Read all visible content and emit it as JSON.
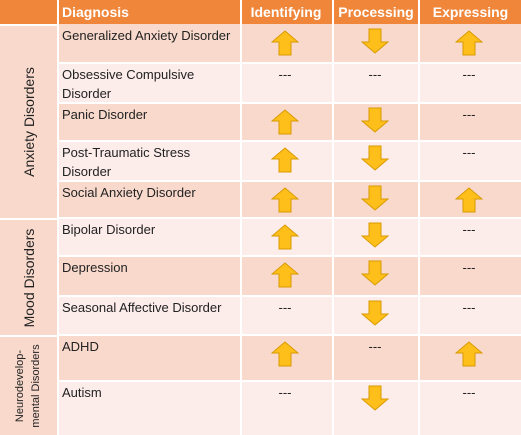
{
  "header": {
    "diagnosis": "Diagnosis",
    "identifying": "Identifying",
    "processing": "Processing",
    "expressing": "Expressing"
  },
  "groups": [
    {
      "label": "Anxiety Disorders"
    },
    {
      "label": "Mood Disorders"
    },
    {
      "label_lines": [
        "Neurodevelop-",
        "mental Disorders"
      ]
    }
  ],
  "rows": [
    {
      "name": "Generalized Anxiety Disorder",
      "identifying": "up",
      "processing": "down",
      "expressing": "up"
    },
    {
      "name": "Obsessive Compulsive Disorder",
      "identifying": "---",
      "processing": "---",
      "expressing": "---"
    },
    {
      "name": "Panic Disorder",
      "identifying": "up",
      "processing": "down",
      "expressing": "---"
    },
    {
      "name": "Post-Traumatic Stress Disorder",
      "identifying": "up",
      "processing": "down",
      "expressing": "---"
    },
    {
      "name": "Social Anxiety Disorder",
      "identifying": "up",
      "processing": "down",
      "expressing": "up"
    },
    {
      "name": "Bipolar Disorder",
      "identifying": "up",
      "processing": "down",
      "expressing": "---"
    },
    {
      "name": "Depression",
      "identifying": "up",
      "processing": "down",
      "expressing": "---"
    },
    {
      "name": "Seasonal Affective Disorder",
      "identifying": "---",
      "processing": "down",
      "expressing": "---"
    },
    {
      "name": "ADHD",
      "identifying": "up",
      "processing": "---",
      "expressing": "up"
    },
    {
      "name": "Autism",
      "identifying": "---",
      "processing": "down",
      "expressing": "---"
    }
  ],
  "colors": {
    "header": "#f0863a",
    "row_dark": "#f8d9cc",
    "row_light": "#fcecea",
    "arrow_fill": "#ffbf1a",
    "arrow_stroke": "#d99a00"
  }
}
